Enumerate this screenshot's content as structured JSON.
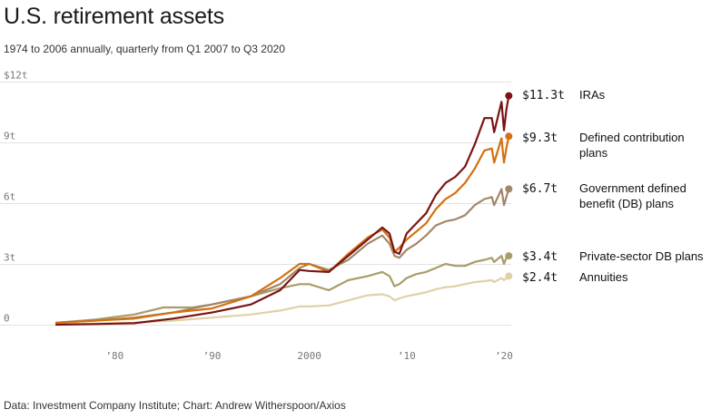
{
  "chart_data": {
    "type": "line",
    "title": "U.S. retirement assets",
    "subtitle": "1974 to 2006 annually, quarterly from Q1 2007 to Q3 2020",
    "source": "Data: Investment Company Institute; Chart: Andrew Witherspoon/Axios",
    "xlim": [
      1974,
      2020.75
    ],
    "ylim": [
      0,
      12
    ],
    "y_ticks": [
      {
        "value": 0,
        "label": "0"
      },
      {
        "value": 3,
        "label": "3t"
      },
      {
        "value": 6,
        "label": "6t"
      },
      {
        "value": 9,
        "label": "9t"
      },
      {
        "value": 12,
        "label": "$12t"
      }
    ],
    "x_ticks": [
      {
        "value": 1980,
        "label": "’80"
      },
      {
        "value": 1990,
        "label": "’90"
      },
      {
        "value": 2000,
        "label": "2000"
      },
      {
        "value": 2010,
        "label": "’10"
      },
      {
        "value": 2020,
        "label": "’20"
      }
    ],
    "grid": "horizontal",
    "legend": "right (direct labels)",
    "series": [
      {
        "name": "IRAs",
        "last_label": "$11.3t",
        "color": "#7a1414",
        "points": [
          [
            1974,
            0.0
          ],
          [
            1978,
            0.03
          ],
          [
            1982,
            0.07
          ],
          [
            1986,
            0.3
          ],
          [
            1990,
            0.6
          ],
          [
            1994,
            1.0
          ],
          [
            1997,
            1.7
          ],
          [
            1999,
            2.7
          ],
          [
            2000,
            2.65
          ],
          [
            2002,
            2.6
          ],
          [
            2004,
            3.4
          ],
          [
            2006,
            4.2
          ],
          [
            2007.5,
            4.8
          ],
          [
            2008.25,
            4.5
          ],
          [
            2008.75,
            3.6
          ],
          [
            2009.25,
            3.5
          ],
          [
            2010,
            4.5
          ],
          [
            2011,
            5.0
          ],
          [
            2012,
            5.5
          ],
          [
            2013,
            6.4
          ],
          [
            2014,
            7.0
          ],
          [
            2015,
            7.3
          ],
          [
            2016,
            7.8
          ],
          [
            2017,
            8.9
          ],
          [
            2018,
            10.2
          ],
          [
            2018.75,
            10.2
          ],
          [
            2019,
            9.5
          ],
          [
            2019.75,
            11.0
          ],
          [
            2020,
            9.6
          ],
          [
            2020.25,
            10.6
          ],
          [
            2020.5,
            11.3
          ]
        ]
      },
      {
        "name": "Defined contribution plans",
        "last_label": "$9.3t",
        "color": "#d4700f",
        "points": [
          [
            1974,
            0.1
          ],
          [
            1978,
            0.2
          ],
          [
            1982,
            0.3
          ],
          [
            1986,
            0.6
          ],
          [
            1990,
            0.8
          ],
          [
            1994,
            1.4
          ],
          [
            1997,
            2.3
          ],
          [
            1999,
            3.0
          ],
          [
            2000,
            3.0
          ],
          [
            2002,
            2.6
          ],
          [
            2004,
            3.5
          ],
          [
            2006,
            4.3
          ],
          [
            2007.5,
            4.7
          ],
          [
            2008.25,
            4.3
          ],
          [
            2008.75,
            3.6
          ],
          [
            2009.25,
            3.8
          ],
          [
            2010,
            4.2
          ],
          [
            2011,
            4.6
          ],
          [
            2012,
            5.0
          ],
          [
            2013,
            5.7
          ],
          [
            2014,
            6.2
          ],
          [
            2015,
            6.5
          ],
          [
            2016,
            7.0
          ],
          [
            2017,
            7.7
          ],
          [
            2018,
            8.6
          ],
          [
            2018.75,
            8.7
          ],
          [
            2019,
            8.0
          ],
          [
            2019.75,
            9.2
          ],
          [
            2020,
            8.0
          ],
          [
            2020.25,
            8.7
          ],
          [
            2020.5,
            9.3
          ]
        ]
      },
      {
        "name": "Government defined benefit (DB) plans",
        "last_label": "$6.7t",
        "color": "#a2866a",
        "points": [
          [
            1974,
            0.1
          ],
          [
            1978,
            0.2
          ],
          [
            1982,
            0.35
          ],
          [
            1986,
            0.6
          ],
          [
            1990,
            1.0
          ],
          [
            1994,
            1.4
          ],
          [
            1997,
            2.0
          ],
          [
            1999,
            2.8
          ],
          [
            2000,
            3.0
          ],
          [
            2002,
            2.7
          ],
          [
            2004,
            3.2
          ],
          [
            2006,
            4.0
          ],
          [
            2007.5,
            4.4
          ],
          [
            2008.25,
            4.0
          ],
          [
            2008.75,
            3.4
          ],
          [
            2009.25,
            3.3
          ],
          [
            2010,
            3.7
          ],
          [
            2011,
            4.0
          ],
          [
            2012,
            4.4
          ],
          [
            2013,
            4.9
          ],
          [
            2014,
            5.1
          ],
          [
            2015,
            5.2
          ],
          [
            2016,
            5.4
          ],
          [
            2017,
            5.9
          ],
          [
            2018,
            6.2
          ],
          [
            2018.75,
            6.3
          ],
          [
            2019,
            5.9
          ],
          [
            2019.75,
            6.7
          ],
          [
            2020,
            5.9
          ],
          [
            2020.25,
            6.3
          ],
          [
            2020.5,
            6.7
          ]
        ]
      },
      {
        "name": "Private-sector DB plans",
        "last_label": "$3.4t",
        "color": "#a89c69",
        "points": [
          [
            1974,
            0.1
          ],
          [
            1978,
            0.25
          ],
          [
            1982,
            0.5
          ],
          [
            1985,
            0.85
          ],
          [
            1988,
            0.85
          ],
          [
            1990,
            1.0
          ],
          [
            1994,
            1.4
          ],
          [
            1997,
            1.8
          ],
          [
            1999,
            2.0
          ],
          [
            2000,
            2.0
          ],
          [
            2002,
            1.7
          ],
          [
            2004,
            2.2
          ],
          [
            2006,
            2.4
          ],
          [
            2007.5,
            2.6
          ],
          [
            2008.25,
            2.4
          ],
          [
            2008.75,
            1.9
          ],
          [
            2009.25,
            2.0
          ],
          [
            2010,
            2.3
          ],
          [
            2011,
            2.5
          ],
          [
            2012,
            2.6
          ],
          [
            2013,
            2.8
          ],
          [
            2014,
            3.0
          ],
          [
            2015,
            2.9
          ],
          [
            2016,
            2.9
          ],
          [
            2017,
            3.1
          ],
          [
            2018,
            3.2
          ],
          [
            2018.75,
            3.3
          ],
          [
            2019,
            3.1
          ],
          [
            2019.75,
            3.4
          ],
          [
            2020,
            3.0
          ],
          [
            2020.25,
            3.3
          ],
          [
            2020.5,
            3.4
          ]
        ]
      },
      {
        "name": "Annuities",
        "last_label": "$2.4t",
        "color": "#ded2a6",
        "points": [
          [
            1974,
            0.03
          ],
          [
            1978,
            0.05
          ],
          [
            1982,
            0.1
          ],
          [
            1986,
            0.2
          ],
          [
            1990,
            0.35
          ],
          [
            1994,
            0.5
          ],
          [
            1997,
            0.7
          ],
          [
            1999,
            0.9
          ],
          [
            2000,
            0.9
          ],
          [
            2002,
            0.95
          ],
          [
            2004,
            1.2
          ],
          [
            2006,
            1.45
          ],
          [
            2007.5,
            1.5
          ],
          [
            2008.25,
            1.4
          ],
          [
            2008.75,
            1.2
          ],
          [
            2009.25,
            1.3
          ],
          [
            2010,
            1.4
          ],
          [
            2011,
            1.5
          ],
          [
            2012,
            1.6
          ],
          [
            2013,
            1.75
          ],
          [
            2014,
            1.85
          ],
          [
            2015,
            1.9
          ],
          [
            2016,
            2.0
          ],
          [
            2017,
            2.1
          ],
          [
            2018,
            2.15
          ],
          [
            2018.75,
            2.2
          ],
          [
            2019,
            2.1
          ],
          [
            2019.75,
            2.3
          ],
          [
            2020,
            2.2
          ],
          [
            2020.25,
            2.3
          ],
          [
            2020.5,
            2.4
          ]
        ]
      }
    ]
  }
}
